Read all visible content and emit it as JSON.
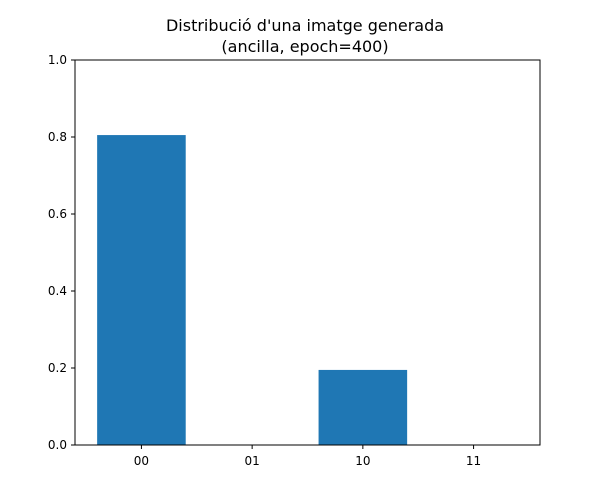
{
  "chart_data": {
    "type": "bar",
    "title": "Distribució d'una imatge generada",
    "subtitle": "(ancilla, epoch=400)",
    "categories": [
      "00",
      "01",
      "10",
      "11"
    ],
    "values": [
      0.805,
      0.0,
      0.195,
      0.0
    ],
    "ylim": [
      0,
      1.0
    ],
    "yticks": [
      "0.0",
      "0.2",
      "0.4",
      "0.6",
      "0.8",
      "1.0"
    ],
    "bar_color": "#1f77b4",
    "grid": false,
    "legend": "none",
    "xlabel": "",
    "ylabel": ""
  }
}
